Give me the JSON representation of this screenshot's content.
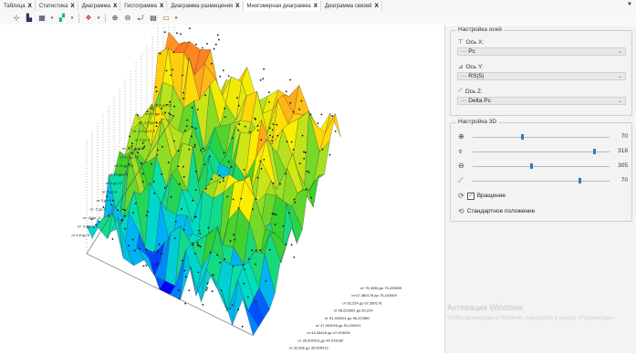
{
  "tabs": [
    {
      "label": "Таблица"
    },
    {
      "label": "Статистика"
    },
    {
      "label": "Диаграмма"
    },
    {
      "label": "Гистограмма"
    },
    {
      "label": "Диаграмма размещения"
    },
    {
      "label": "Многомерная диаграмма"
    },
    {
      "label": "Диаграмма связей"
    }
  ],
  "active_tab": "Многомерная диаграмма",
  "tab_close_glyph": "X",
  "tab_overflow_glyph": "▼",
  "toolbar": {
    "icons": [
      "axis-icon",
      "chart-type-icon",
      "grid-icon",
      "surface-color-icon",
      "zoom-in-icon",
      "zoom-out-icon",
      "rotate-icon",
      "legend-icon",
      "tooltip-icon"
    ],
    "dropdown_glyph": "▾"
  },
  "panel": {
    "axes_group_title": "Настройка осей",
    "axis_x": {
      "label": "Ось X:",
      "value": "··· Рс"
    },
    "axis_y": {
      "label": "Ось Y:",
      "value": "··· RS(5)"
    },
    "axis_z": {
      "label": "Ось Z:",
      "value": "··· Delta Pc"
    },
    "settings_3d_title": "Настройка 3D",
    "sliders": [
      {
        "icon": "zoom-icon",
        "value": "70",
        "fraction": 0.35
      },
      {
        "icon": "rotate-horizontal-icon",
        "value": "318",
        "fraction": 0.88
      },
      {
        "icon": "rotate-vertical-icon",
        "value": "305",
        "fraction": 0.42
      },
      {
        "icon": "perspective-icon",
        "value": "70",
        "fraction": 0.77
      }
    ],
    "rotation_checkbox": {
      "label": "Вращение",
      "checked": true,
      "check_glyph": "✓"
    },
    "default_position_label": "Стандартное положение"
  },
  "watermark": {
    "line1": "Активация Windows",
    "line2": "Чтобы активировать Windows, перейдите в раздел «Параметры»."
  },
  "chart_data": {
    "type": "surface-3d",
    "x_axis": "Рс",
    "y_axis": "RS(5)",
    "z_axis": "Delta Pc",
    "color_scale": [
      "#0000ff",
      "#00aaff",
      "#00e0c0",
      "#30d030",
      "#b0e020",
      "#ffee00",
      "#ffa020",
      "#ff4020",
      "#ff0000"
    ],
    "y_ticks": [
      "от 0 до 11",
      "от 6,3 до 1,7",
      "от -2,4 до 1,8",
      "от -1,4 до 1,5",
      "от 2 до 3",
      "от -1,4 до 5,3",
      "от 17 до 20",
      "от 15 до 18",
      "от 12 до 15",
      "от 9 до 12",
      "от 6 до 9",
      "от 3 до 6",
      "от -2 до 2",
      "от -8 до -4",
      "от -4 до -2",
      "от 4,6 до 5"
    ],
    "x_ticks": [
      "от 75,4938 до 75,433509",
      "от 67,380178 до 75,433509",
      "от 62,224 до 67,380178",
      "от 58,622861 до 62,224",
      "от 51,430321 до 56,222861",
      "от 47,903026 до 51,430321",
      "от 44,33428 до 47,903026",
      "от 35,005413 до 44,373189",
      "от 32,666 до 35,005413",
      "от 27,809032 до 34,358074",
      "от 14,500 до 14,25456"
    ]
  }
}
